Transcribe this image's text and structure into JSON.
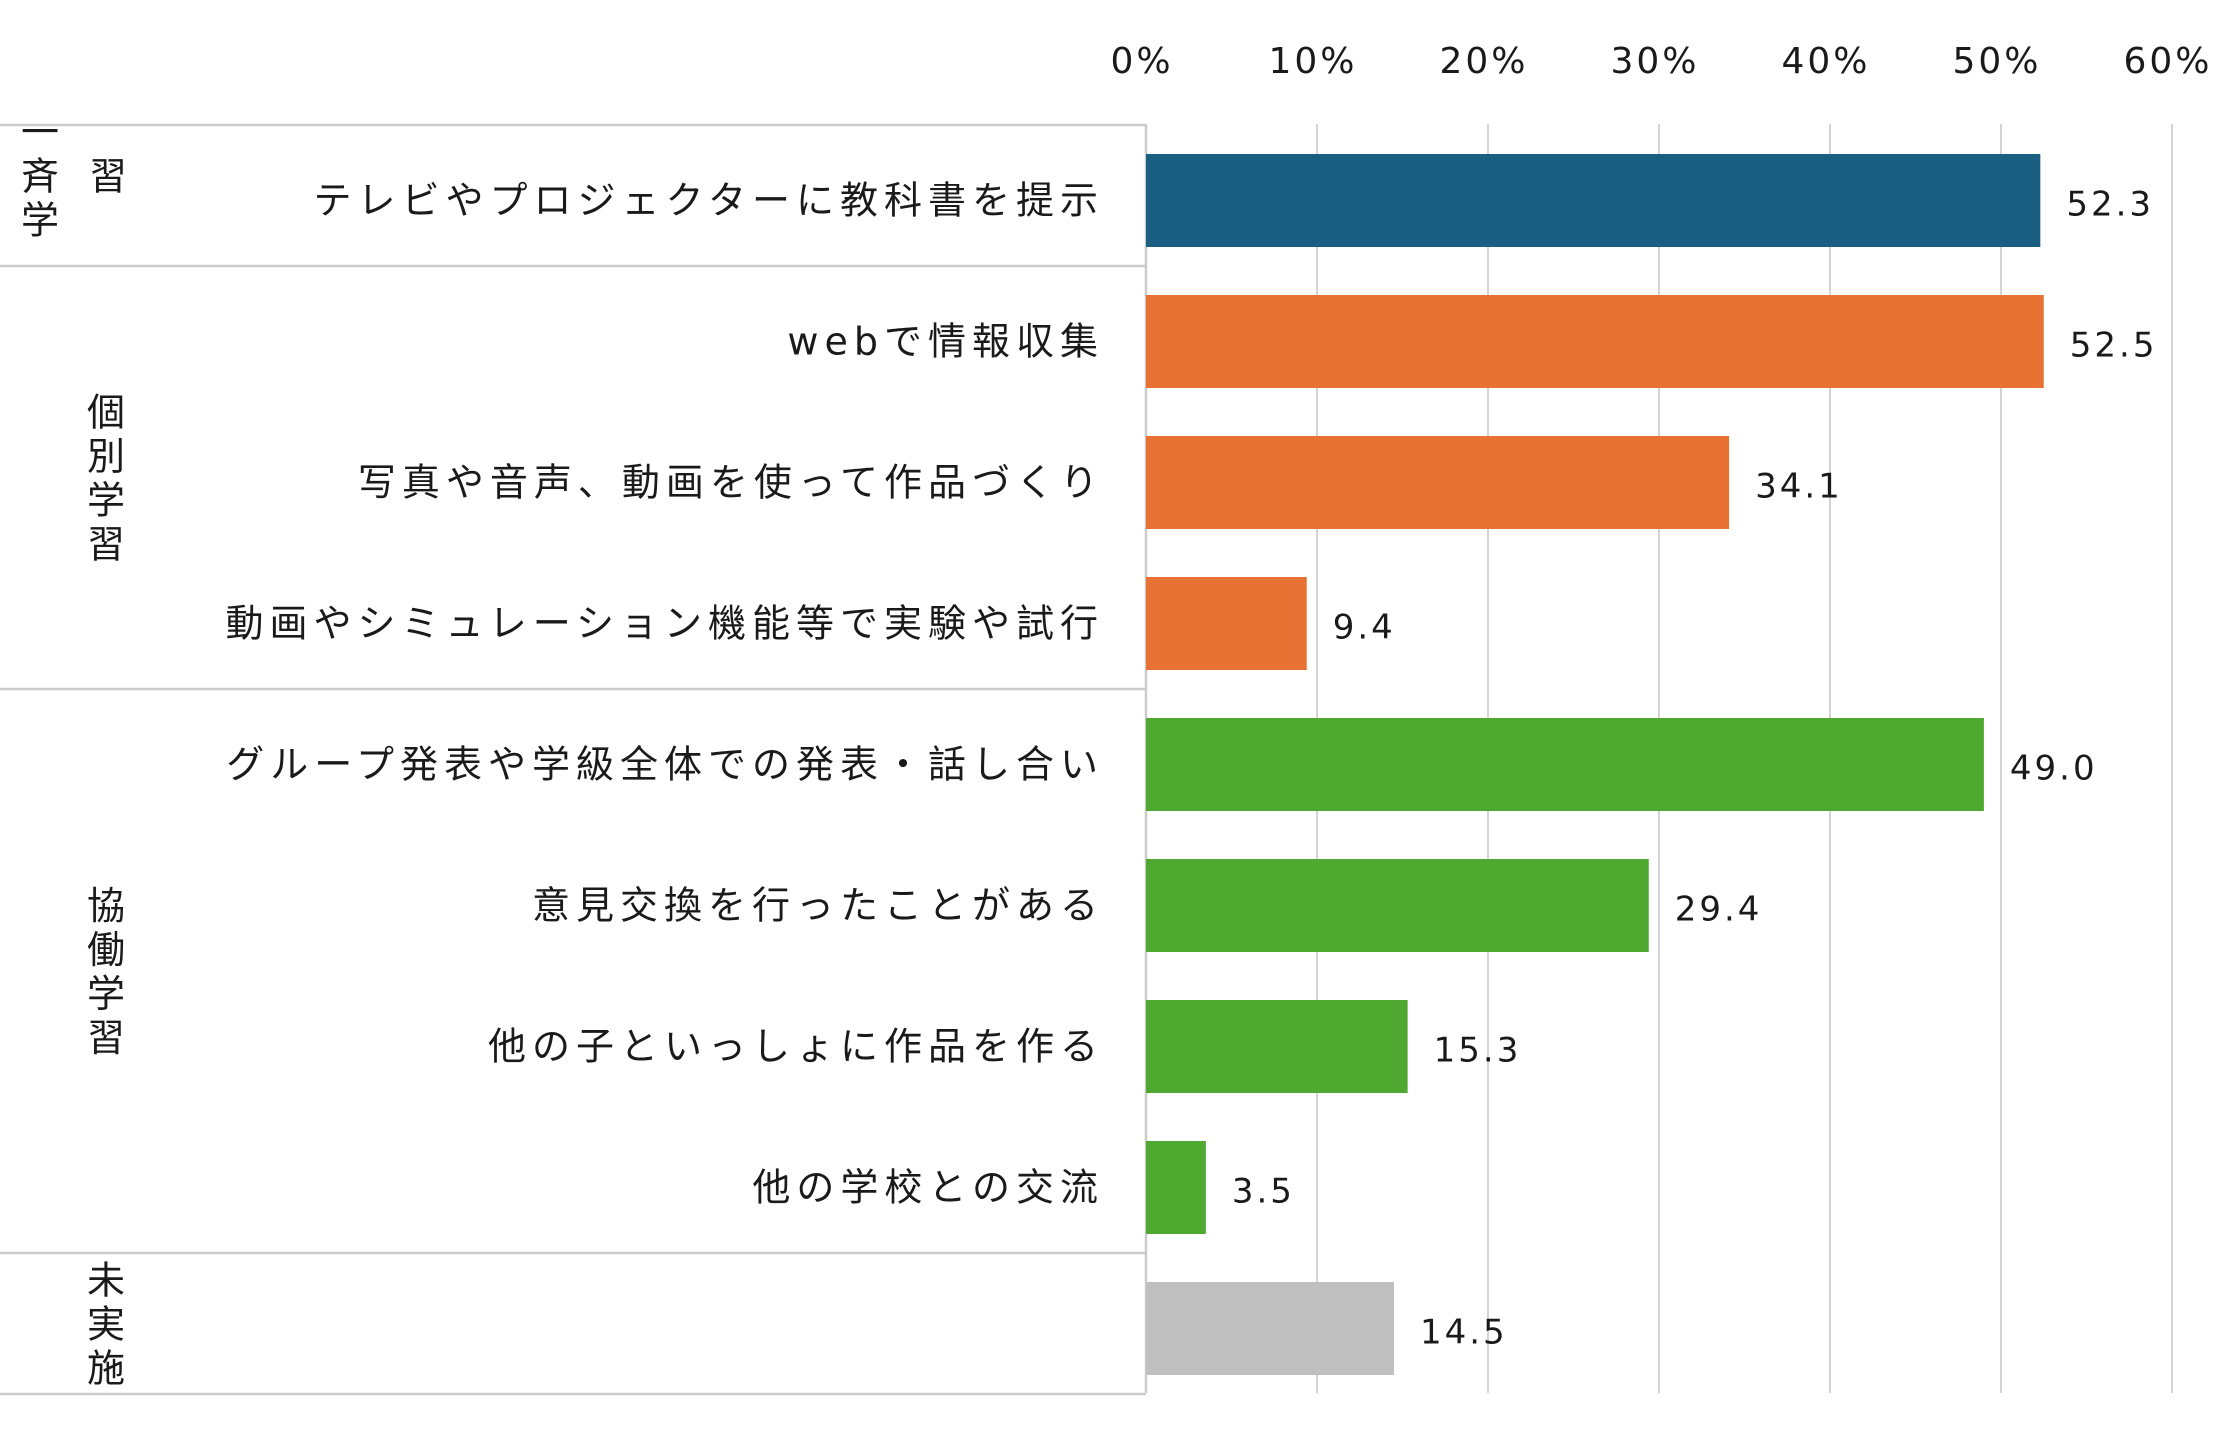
{
  "chart_data": {
    "type": "bar",
    "orientation": "horizontal",
    "xlim": [
      0,
      60
    ],
    "ticks": [
      "0%",
      "10%",
      "20%",
      "30%",
      "40%",
      "50%",
      "60%"
    ],
    "grid": true,
    "groups": [
      {
        "label": "一斉学習",
        "categories": [
          0
        ]
      },
      {
        "label": "個別学習",
        "categories": [
          1,
          2,
          3
        ]
      },
      {
        "label": "協働学習",
        "categories": [
          4,
          5,
          6,
          7
        ]
      },
      {
        "label": "未実施",
        "categories": [
          8
        ]
      }
    ],
    "categories": [
      "テレビやプロジェクターに教科書を提示",
      "webで情報収集",
      "写真や音声、動画を使って作品づくり",
      "動画やシミュレーション機能等で実験や試行",
      "グループ発表や学級全体での発表・話し合い",
      "意見交換を行ったことがある",
      "他の子といっしょに作品を作る",
      "他の学校との交流",
      ""
    ],
    "values": [
      52.3,
      52.5,
      34.1,
      9.4,
      49.0,
      29.4,
      15.3,
      3.5,
      14.5
    ],
    "value_labels": [
      "52.3",
      "52.5",
      "34.1",
      "9.4",
      "49.0",
      "29.4",
      "15.3",
      "3.5",
      "14.5"
    ],
    "colors": [
      "#1a5f82",
      "#e87234",
      "#e87234",
      "#e87234",
      "#4fa830",
      "#4fa830",
      "#4fa830",
      "#4fa830",
      "#bfbfbf"
    ]
  }
}
